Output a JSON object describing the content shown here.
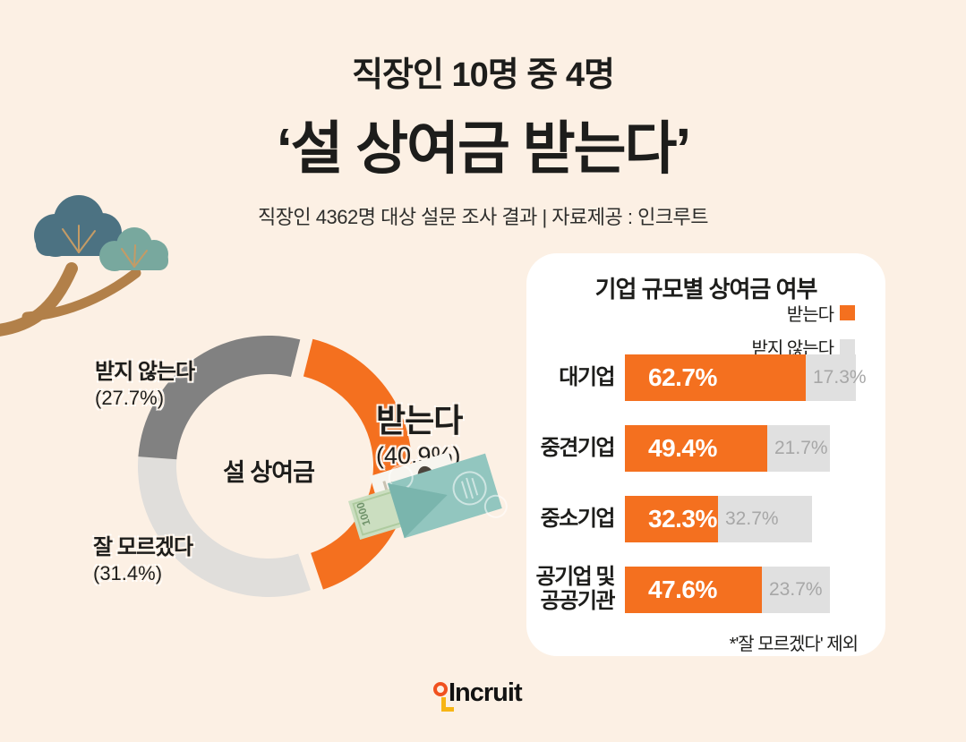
{
  "header": {
    "line1": "직장인 10명 중 4명",
    "line2": "‘설 상여금 받는다’",
    "subtitle": "직장인 4362명 대상 설문 조사 결과 | 자료제공 : 인크루트"
  },
  "colors": {
    "background": "#FCF0E4",
    "panel": "#FFFFFF",
    "accent_orange": "#F4701F",
    "dark_gray": "#818181",
    "light_gray": "#E0DEDB",
    "bar_gray": "#E0E0E0",
    "bar_gray_text": "#A7A7A7",
    "text": "#1D1D1B"
  },
  "chart_data": [
    {
      "type": "pie",
      "subtype": "donut",
      "center_label": "설 상여금",
      "start_angle_deg": 14,
      "segments": [
        {
          "id": "badneunda",
          "label": "받는다",
          "value": 40.9,
          "display": "(40.9%)",
          "color": "#F4701F",
          "exploded": true
        },
        {
          "id": "jal-moreugetda",
          "label": "잘 모르겠다",
          "value": 31.4,
          "display": "(31.4%)",
          "color": "#E0DEDB",
          "exploded": false
        },
        {
          "id": "batji-anneunda",
          "label": "받지 않는다",
          "value": 27.7,
          "display": "(27.7%)",
          "color": "#818181",
          "exploded": false
        }
      ]
    },
    {
      "type": "bar",
      "title": "기업 규모별 상여금 여부",
      "categories": [
        "대기업",
        "중견기업",
        "중소기업",
        "공기업 및\n공공기관"
      ],
      "series": [
        {
          "name": "받는다",
          "color": "#F4701F",
          "values": [
            62.7,
            49.4,
            32.3,
            47.6
          ]
        },
        {
          "name": "받지 않는다",
          "color": "#E0E0E0",
          "values": [
            17.3,
            21.7,
            32.7,
            23.7
          ]
        }
      ],
      "unit": "%",
      "xlim": [
        0,
        100
      ],
      "legend_position": "top-right",
      "footnote": "*'잘 모르겠다' 제외"
    }
  ],
  "logo": {
    "text": "Incruit"
  }
}
